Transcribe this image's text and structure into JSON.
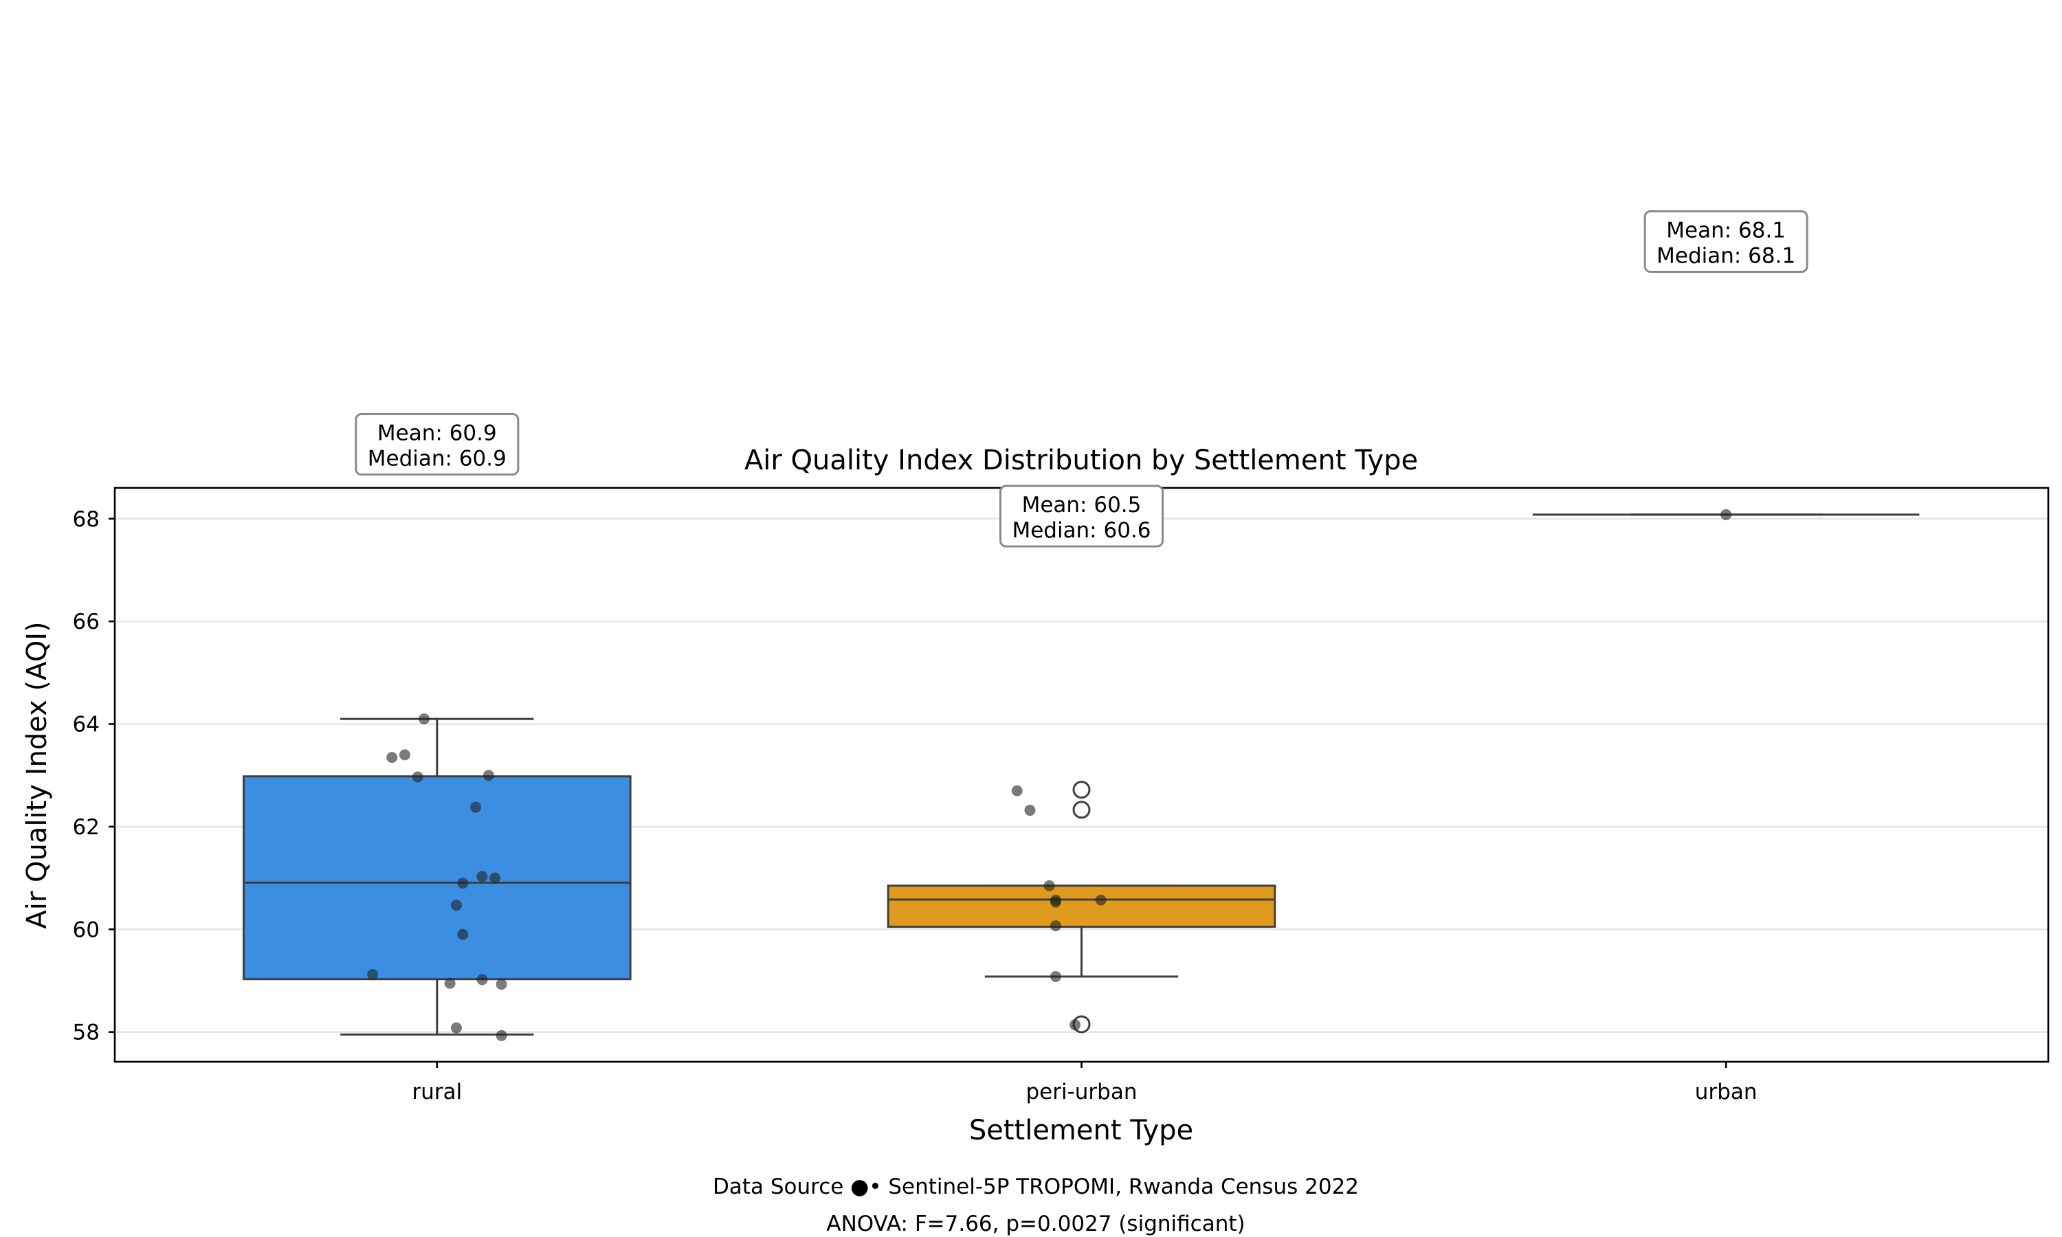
{
  "chart_data": {
    "type": "box",
    "title": "Air Quality Index Distribution by Settlement Type",
    "xlabel": "Settlement Type",
    "ylabel": "Air Quality Index (AQI)",
    "ylim": [
      57.42,
      68.6
    ],
    "yticks": [
      58,
      60,
      62,
      64,
      66,
      68
    ],
    "ytick_labels": [
      "58",
      "60",
      "62",
      "64",
      "66",
      "68"
    ],
    "grid": "horizontal",
    "categories": [
      "rural",
      "peri-urban",
      "urban"
    ],
    "colors": {
      "rural": "#3b8ee2",
      "peri-urban": "#e09b1f",
      "urban": "#2ca02c",
      "box_edge": "#3f3f3f",
      "points": "#222222"
    },
    "boxes": [
      {
        "category": "rural",
        "q1": 59.03,
        "median": 60.91,
        "q3": 62.98,
        "whisker_low": 57.95,
        "whisker_high": 64.1,
        "mean": 60.9,
        "outliers": [],
        "annotation": {
          "mean": "Mean: 60.9",
          "median": "Median: 60.9",
          "anchor_value": 69.45
        },
        "points": [
          {
            "offset": -0.02,
            "y": 64.1
          },
          {
            "offset": -0.07,
            "y": 63.35
          },
          {
            "offset": -0.05,
            "y": 63.4
          },
          {
            "offset": -0.03,
            "y": 62.97
          },
          {
            "offset": 0.08,
            "y": 63.0
          },
          {
            "offset": 0.06,
            "y": 62.38
          },
          {
            "offset": 0.09,
            "y": 61.0
          },
          {
            "offset": 0.07,
            "y": 61.03
          },
          {
            "offset": 0.04,
            "y": 60.9
          },
          {
            "offset": 0.03,
            "y": 60.47
          },
          {
            "offset": 0.04,
            "y": 59.9
          },
          {
            "offset": -0.1,
            "y": 59.12
          },
          {
            "offset": 0.02,
            "y": 58.95
          },
          {
            "offset": 0.07,
            "y": 59.02
          },
          {
            "offset": 0.1,
            "y": 58.93
          },
          {
            "offset": 0.03,
            "y": 58.08
          },
          {
            "offset": 0.1,
            "y": 57.93
          }
        ]
      },
      {
        "category": "peri-urban",
        "q1": 60.05,
        "median": 60.58,
        "q3": 60.85,
        "whisker_low": 59.08,
        "whisker_high": 60.85,
        "mean": 60.5,
        "outliers": [
          62.72,
          62.33,
          58.15
        ],
        "annotation": {
          "mean": "Mean: 60.5",
          "median": "Median: 60.6",
          "anchor_value": 68.05
        },
        "points": [
          {
            "offset": -0.1,
            "y": 62.7
          },
          {
            "offset": -0.08,
            "y": 62.32
          },
          {
            "offset": -0.05,
            "y": 60.85
          },
          {
            "offset": -0.04,
            "y": 60.57
          },
          {
            "offset": -0.04,
            "y": 60.53
          },
          {
            "offset": 0.03,
            "y": 60.57
          },
          {
            "offset": -0.04,
            "y": 60.07
          },
          {
            "offset": -0.04,
            "y": 59.08
          },
          {
            "offset": -0.01,
            "y": 58.14
          }
        ]
      },
      {
        "category": "urban",
        "q1": 68.08,
        "median": 68.08,
        "q3": 68.08,
        "whisker_low": 68.08,
        "whisker_high": 68.08,
        "mean": 68.1,
        "outliers": [],
        "annotation": {
          "mean": "Mean: 68.1",
          "median": "Median: 68.1",
          "anchor_value": 73.4
        },
        "points": [
          {
            "offset": 0.0,
            "y": 68.08
          }
        ]
      }
    ]
  },
  "footer": {
    "source": "Data Source ●• Sentinel-5P TROPOMI, Rwanda Census 2022",
    "stats": "ANOVA: F=7.66, p=0.0027 (significant)"
  }
}
